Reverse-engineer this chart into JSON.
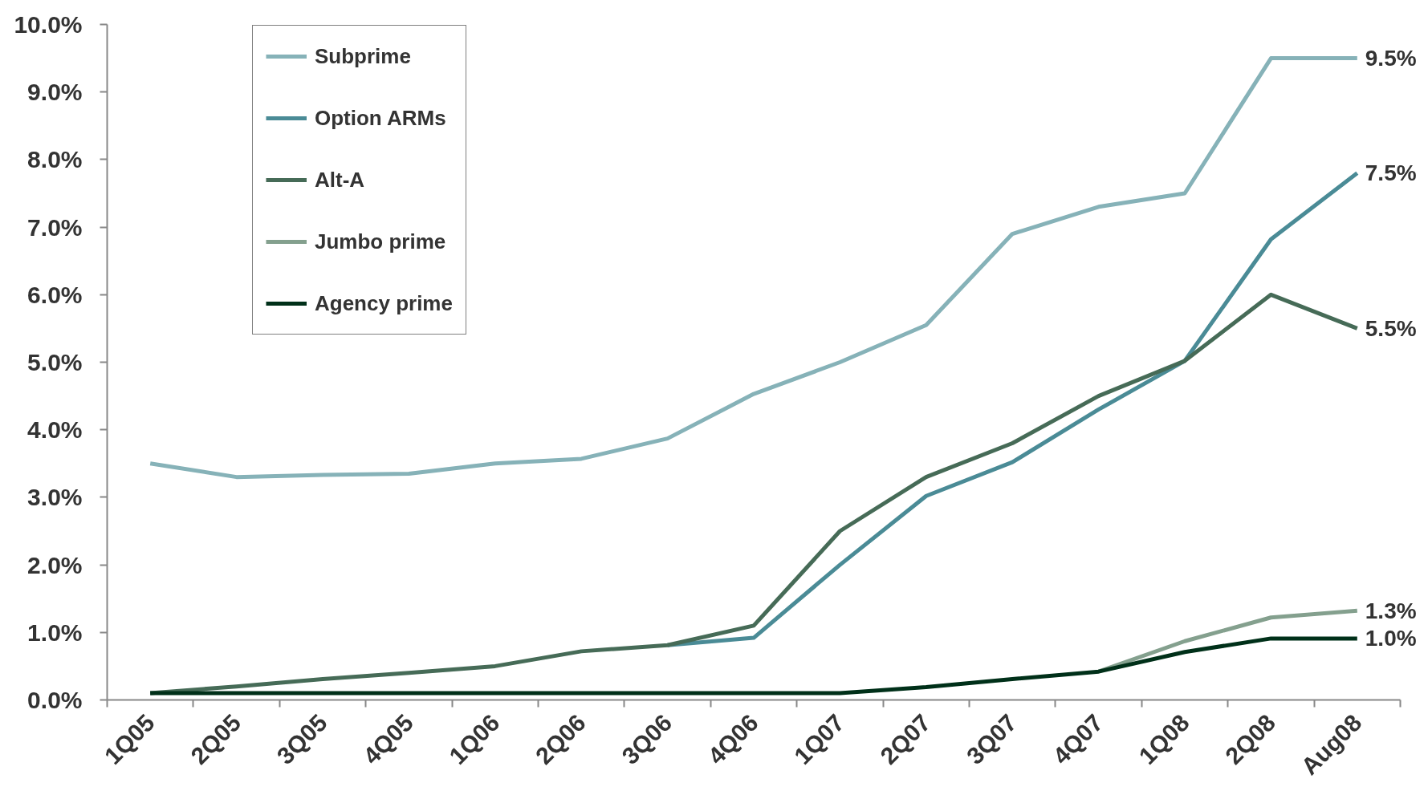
{
  "chart_data": {
    "type": "line",
    "categories": [
      "1Q05",
      "2Q05",
      "3Q05",
      "4Q05",
      "1Q06",
      "2Q06",
      "3Q06",
      "4Q06",
      "1Q07",
      "2Q07",
      "3Q07",
      "4Q07",
      "1Q08",
      "2Q08",
      "Aug08"
    ],
    "series": [
      {
        "name": "Subprime",
        "color": "#86b2b8",
        "values": [
          3.5,
          3.3,
          3.33,
          3.35,
          3.5,
          3.57,
          3.87,
          4.53,
          5.0,
          5.55,
          6.9,
          7.3,
          7.5,
          9.5,
          9.5
        ]
      },
      {
        "name": "Option ARMs",
        "color": "#4a8b96",
        "values": [
          null,
          null,
          null,
          null,
          null,
          null,
          0.81,
          0.92,
          2.0,
          3.02,
          3.52,
          4.3,
          5.02,
          6.82,
          7.8
        ]
      },
      {
        "name": "Alt-A",
        "color": "#466b57",
        "values": [
          0.1,
          0.2,
          0.31,
          0.4,
          0.5,
          0.72,
          0.81,
          1.1,
          2.5,
          3.3,
          3.8,
          4.5,
          5.02,
          6.0,
          5.5
        ]
      },
      {
        "name": "Jumbo prime",
        "color": "#84a08e",
        "values": [
          null,
          null,
          null,
          null,
          null,
          null,
          null,
          null,
          null,
          null,
          null,
          0.42,
          0.87,
          1.22,
          1.32
        ]
      },
      {
        "name": "Agency prime",
        "color": "#003019",
        "values": [
          0.1,
          0.1,
          0.1,
          0.1,
          0.1,
          0.1,
          0.1,
          0.1,
          0.1,
          0.19,
          0.31,
          0.42,
          0.71,
          0.91,
          0.91
        ]
      }
    ],
    "ylim": [
      0,
      10
    ],
    "yticks": [
      {
        "value": 0,
        "label": "0.0%"
      },
      {
        "value": 1,
        "label": "1.0%"
      },
      {
        "value": 2,
        "label": "2.0%"
      },
      {
        "value": 3,
        "label": "3.0%"
      },
      {
        "value": 4,
        "label": "4.0%"
      },
      {
        "value": 5,
        "label": "5.0%"
      },
      {
        "value": 6,
        "label": "6.0%"
      },
      {
        "value": 7,
        "label": "7.0%"
      },
      {
        "value": 8,
        "label": "8.0%"
      },
      {
        "value": 9,
        "label": "9.0%"
      },
      {
        "value": 10,
        "label": "10.0%"
      }
    ],
    "grid": false,
    "legend": "top left",
    "marker": "none",
    "line_style": "solid",
    "annotations": [
      {
        "text": "9.5%",
        "x": "Aug08",
        "y": 9.5
      },
      {
        "text": "7.5%",
        "x": "Aug08",
        "y": 7.8
      },
      {
        "text": "5.5%",
        "x": "Aug08",
        "y": 5.5
      },
      {
        "text": "1.3%",
        "x": "Aug08",
        "y": 1.32
      },
      {
        "text": "1.0%",
        "x": "Aug08",
        "y": 0.91
      }
    ]
  }
}
